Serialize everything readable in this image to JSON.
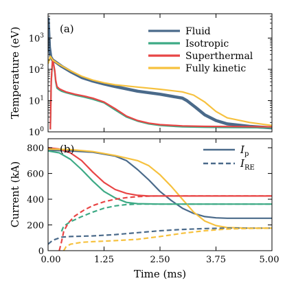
{
  "chart_data": [
    {
      "id": "a",
      "panel_label": "(a)",
      "type": "line",
      "ylabel": "Temperature (eV)",
      "yscale": "log",
      "ylim": [
        1,
        6000
      ],
      "xlim": [
        0,
        5
      ],
      "y_ticks": [
        1,
        10,
        100,
        1000
      ],
      "y_tick_labels": [
        "10^0",
        "10^1",
        "10^2",
        "10^3"
      ],
      "legend": {
        "placement": "top-right"
      },
      "series": [
        {
          "name": "Fluid",
          "color": "#4a6a8a",
          "width": 4.5,
          "x": [
            0.0,
            0.03,
            0.06,
            0.1,
            0.2,
            0.3,
            0.5,
            0.75,
            1.0,
            1.25,
            1.5,
            2.0,
            2.5,
            3.0,
            3.1,
            3.3,
            3.5,
            3.75,
            4.0,
            4.5,
            5.0
          ],
          "y": [
            4500,
            500,
            250,
            200,
            160,
            125,
            85,
            55,
            42,
            34,
            28,
            20,
            16,
            12,
            10,
            6,
            3.5,
            2.3,
            1.8,
            1.5,
            1.35
          ]
        },
        {
          "name": "Isotropic",
          "color": "#3daa85",
          "width": 2.2,
          "x": [
            0.05,
            0.07,
            0.1,
            0.12,
            0.15,
            0.17,
            0.2,
            0.25,
            0.3,
            0.4,
            0.6,
            0.8,
            1.0,
            1.25,
            1.5,
            1.75,
            2.0,
            2.25,
            2.5,
            3.0,
            3.5,
            4.0,
            5.0
          ],
          "y": [
            1.2,
            40,
            200,
            150,
            80,
            40,
            25,
            22,
            20,
            18,
            15,
            13,
            11,
            8.5,
            5,
            3,
            2.2,
            1.8,
            1.6,
            1.45,
            1.4,
            1.38,
            1.35
          ]
        },
        {
          "name": "Superthermal",
          "color": "#e84545",
          "width": 2.2,
          "x": [
            0.05,
            0.07,
            0.1,
            0.12,
            0.15,
            0.17,
            0.2,
            0.25,
            0.3,
            0.4,
            0.6,
            0.8,
            1.0,
            1.25,
            1.5,
            1.75,
            2.0,
            2.25,
            2.5,
            3.0,
            3.5,
            4.0,
            5.0
          ],
          "y": [
            1.2,
            40,
            210,
            160,
            90,
            45,
            28,
            24,
            22,
            19,
            16,
            14,
            12,
            9,
            5.5,
            3.2,
            2.3,
            1.9,
            1.7,
            1.55,
            1.5,
            1.48,
            1.45
          ]
        },
        {
          "name": "Fully kinetic",
          "color": "#f6c13e",
          "width": 2.2,
          "x": [
            0.0,
            0.05,
            0.1,
            0.2,
            0.3,
            0.5,
            0.75,
            1.0,
            1.25,
            1.5,
            2.0,
            2.5,
            3.0,
            3.25,
            3.5,
            3.75,
            4.0,
            4.5,
            5.0
          ],
          "y": [
            150,
            260,
            200,
            160,
            130,
            90,
            60,
            45,
            37,
            32,
            27,
            23,
            19,
            15,
            9,
            4.5,
            2.8,
            2.0,
            1.6
          ]
        }
      ]
    },
    {
      "id": "b",
      "panel_label": "(b)",
      "type": "line",
      "xlabel": "Time (ms)",
      "ylabel": "Current (kA)",
      "ylim": [
        0,
        870
      ],
      "xlim": [
        0,
        5
      ],
      "x_ticks": [
        0,
        1.25,
        2.5,
        3.75,
        5
      ],
      "x_tick_labels": [
        "0.00",
        "1.25",
        "2.50",
        "3.75",
        "5.00"
      ],
      "y_ticks": [
        0,
        200,
        400,
        600,
        800
      ],
      "y_tick_labels": [
        "0",
        "200",
        "400",
        "600",
        "800"
      ],
      "legend": {
        "placement": "top-right",
        "color": "#4a6a8a",
        "entries": [
          {
            "label_main": "I",
            "label_sub": "p",
            "style": "solid"
          },
          {
            "label_main": "I",
            "label_sub": "RE",
            "style": "dashed"
          }
        ]
      },
      "series": [
        {
          "name": "Fluid I_p",
          "color": "#4a6a8a",
          "style": "solid",
          "x": [
            0,
            0.5,
            1.0,
            1.5,
            1.75,
            2.0,
            2.25,
            2.5,
            2.75,
            3.0,
            3.25,
            3.5,
            3.75,
            4.0,
            5.0
          ],
          "y": [
            780,
            775,
            765,
            735,
            700,
            630,
            550,
            460,
            390,
            330,
            290,
            265,
            255,
            252,
            252
          ]
        },
        {
          "name": "Isotropic I_p",
          "color": "#3daa85",
          "style": "solid",
          "x": [
            0,
            0.25,
            0.5,
            0.75,
            1.0,
            1.25,
            1.5,
            1.75,
            2.0,
            2.5,
            3.0,
            5.0
          ],
          "y": [
            775,
            760,
            710,
            630,
            540,
            460,
            410,
            375,
            365,
            362,
            362,
            362
          ]
        },
        {
          "name": "Superthermal I_p",
          "color": "#e84545",
          "style": "solid",
          "x": [
            0,
            0.25,
            0.5,
            0.75,
            1.0,
            1.25,
            1.5,
            1.75,
            2.0,
            2.25,
            2.5,
            5.0
          ],
          "y": [
            800,
            790,
            760,
            700,
            610,
            530,
            475,
            445,
            430,
            425,
            425,
            425
          ]
        },
        {
          "name": "Fully kinetic I_p",
          "color": "#f6c13e",
          "style": "solid",
          "x": [
            0,
            0.5,
            1.0,
            1.5,
            2.0,
            2.25,
            2.5,
            2.75,
            3.0,
            3.25,
            3.5,
            3.75,
            4.0,
            4.5,
            5.0
          ],
          "y": [
            790,
            785,
            770,
            740,
            700,
            660,
            590,
            500,
            400,
            300,
            230,
            195,
            180,
            175,
            175
          ]
        },
        {
          "name": "Fluid I_RE",
          "color": "#4a6a8a",
          "style": "dashed",
          "x": [
            0.0,
            0.1,
            0.3,
            0.5,
            1.0,
            1.5,
            2.0,
            2.5,
            3.0,
            3.5,
            4.0,
            4.5,
            5.0
          ],
          "y": [
            50,
            80,
            105,
            110,
            115,
            125,
            140,
            155,
            165,
            172,
            175,
            175,
            175
          ]
        },
        {
          "name": "Isotropic I_RE",
          "color": "#3daa85",
          "style": "dashed",
          "x": [
            0.3,
            0.35,
            0.5,
            0.75,
            1.0,
            1.25,
            1.5,
            1.75,
            2.0,
            2.5,
            3.0,
            5.0
          ],
          "y": [
            150,
            190,
            225,
            265,
            300,
            330,
            348,
            358,
            362,
            362,
            362,
            362
          ]
        },
        {
          "name": "Superthermal I_RE",
          "color": "#e84545",
          "style": "dashed",
          "x": [
            0.25,
            0.3,
            0.35,
            0.45,
            0.6,
            0.8,
            1.0,
            1.25,
            1.5,
            1.75,
            2.0,
            2.25,
            2.5,
            5.0
          ],
          "y": [
            0,
            70,
            150,
            215,
            270,
            315,
            350,
            380,
            400,
            412,
            420,
            424,
            425,
            425
          ]
        },
        {
          "name": "Fully kinetic I_RE",
          "color": "#f6c13e",
          "style": "dashed",
          "x": [
            0.35,
            0.4,
            0.5,
            0.75,
            1.0,
            1.5,
            2.0,
            2.5,
            3.0,
            3.5,
            4.0,
            4.5,
            5.0
          ],
          "y": [
            0,
            30,
            50,
            65,
            70,
            78,
            88,
            110,
            135,
            155,
            168,
            173,
            175
          ]
        }
      ]
    }
  ]
}
